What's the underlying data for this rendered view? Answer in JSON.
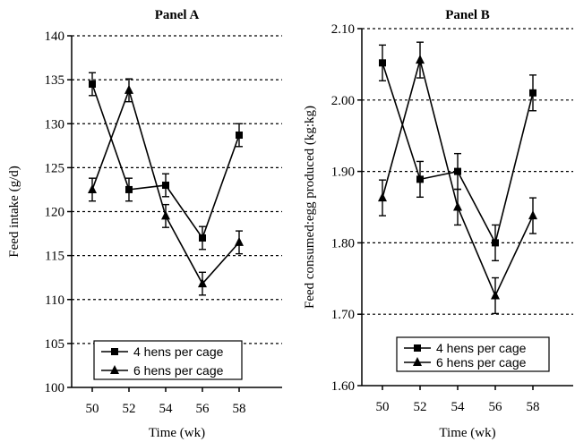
{
  "chart_data": [
    {
      "type": "line",
      "title": "Panel A",
      "xlabel": "Time (wk)",
      "ylabel": "Feed intake (g/d)",
      "x": [
        50,
        52,
        54,
        56,
        58
      ],
      "x_tick_labels": [
        "50",
        "52",
        "54",
        "56",
        "58"
      ],
      "ylim": [
        100,
        140
      ],
      "y_tick_labels": [
        "100",
        "105",
        "110",
        "115",
        "120",
        "125",
        "130",
        "135",
        "140"
      ],
      "grid": "horizontal dotted",
      "legend_position": "bottom-center",
      "series": [
        {
          "name": "4 hens per cage",
          "marker": "square",
          "values": [
            134.5,
            122.5,
            123.0,
            117.0,
            128.7
          ],
          "errors": [
            1.3,
            1.3,
            1.3,
            1.3,
            1.3
          ]
        },
        {
          "name": "6 hens per cage",
          "marker": "triangle",
          "values": [
            122.5,
            133.8,
            119.5,
            111.8,
            116.5
          ],
          "errors": [
            1.3,
            1.3,
            1.3,
            1.3,
            1.3
          ]
        }
      ]
    },
    {
      "type": "line",
      "title": "Panel B",
      "xlabel": "Time (wk)",
      "ylabel": "Feed consumed:egg produced (kg:kg)",
      "x": [
        50,
        52,
        54,
        56,
        58
      ],
      "x_tick_labels": [
        "50",
        "52",
        "54",
        "56",
        "58"
      ],
      "ylim": [
        1.6,
        2.1
      ],
      "y_tick_labels": [
        "1.60",
        "1.70",
        "1.80",
        "1.90",
        "2.00",
        "2.10"
      ],
      "grid": "horizontal dotted",
      "legend_position": "bottom-center",
      "series": [
        {
          "name": "4 hens per cage",
          "marker": "square",
          "values": [
            2.052,
            1.889,
            1.9,
            1.8,
            2.01
          ],
          "errors": [
            0.025,
            0.025,
            0.025,
            0.025,
            0.025
          ]
        },
        {
          "name": "6 hens per cage",
          "marker": "triangle",
          "values": [
            1.863,
            2.056,
            1.85,
            1.726,
            1.838
          ],
          "errors": [
            0.025,
            0.025,
            0.025,
            0.025,
            0.025
          ]
        }
      ]
    }
  ]
}
